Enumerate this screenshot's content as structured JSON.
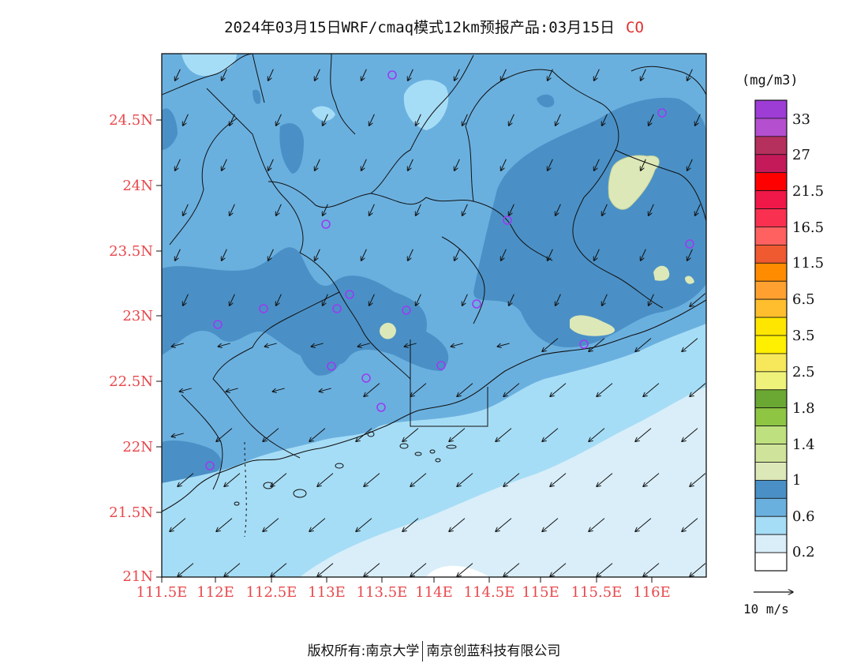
{
  "title": {
    "text": "2024年03月15日WRF/cmaq模式12km预报产品:03月15日",
    "pollutant": "CO"
  },
  "map": {
    "lat_labels": [
      "24.5N",
      "24N",
      "23.5N",
      "23N",
      "22.5N",
      "22N",
      "21.5N",
      "21N"
    ],
    "lon_labels": [
      "111.5E",
      "112E",
      "112.5E",
      "113E",
      "113.5E",
      "114E",
      "114.5E",
      "115E",
      "115.5E",
      "116E"
    ],
    "colors": {
      "land_dark": "#4a90c6",
      "land_mid": "#6ab0df",
      "coast_light": "#a6ddf6",
      "sea_pale": "#d9eef9",
      "hotspot": "#dde8b8",
      "station_marker": "#9a3cf0"
    },
    "wind_direction": "northeasterly"
  },
  "colorbar": {
    "unit": "(mg/m3)",
    "labels": [
      "33",
      "27",
      "21.5",
      "16.5",
      "11.5",
      "6.5",
      "3.5",
      "2.5",
      "1.8",
      "1.4",
      "1",
      "0.6",
      "0.2"
    ],
    "colors": [
      "#9e3cd6",
      "#b44fcf",
      "#b5305c",
      "#c41a5a",
      "#ff0000",
      "#f01848",
      "#fa3050",
      "#ff6060",
      "#ef5a30",
      "#ff8c00",
      "#ffa030",
      "#ffbe2e",
      "#ffe600",
      "#ffef00",
      "#f6e85a",
      "#eef27a",
      "#6aa833",
      "#8ec644",
      "#bfe07e",
      "#cfe49a",
      "#dde8b8",
      "#4a90c6",
      "#6ab0df",
      "#a6ddf6",
      "#d9eef9",
      "#ffffff"
    ]
  },
  "wind_reference": {
    "label": "10 m/s"
  },
  "footer": {
    "copyright": "版权所有:南京大学",
    "company": "南京创蓝科技有限公司"
  }
}
